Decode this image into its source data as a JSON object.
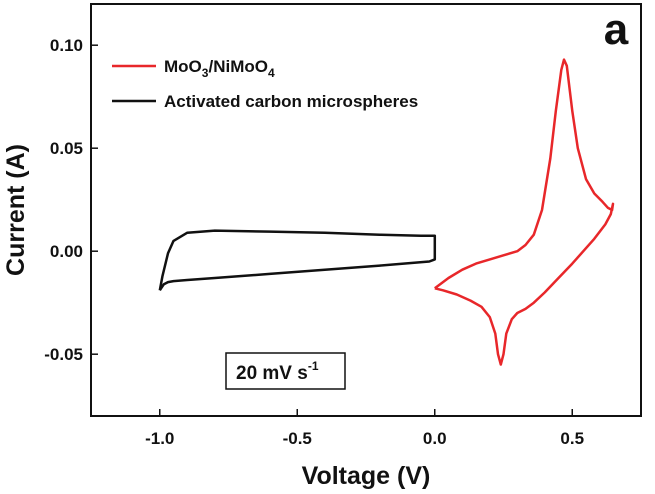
{
  "chart_data": {
    "type": "line",
    "panel_label": "a",
    "xlabel": "Voltage (V)",
    "ylabel": "Current (A)",
    "xlim": [
      -1.25,
      0.75
    ],
    "ylim": [
      -0.08,
      0.12
    ],
    "xticks": [
      -1.0,
      -0.5,
      0.0,
      0.5
    ],
    "yticks": [
      -0.05,
      0.0,
      0.05,
      0.1
    ],
    "xtick_labels": [
      "-1.0",
      "-0.5",
      "0.0",
      "0.5"
    ],
    "ytick_labels": [
      "-0.05",
      "0.00",
      "0.05",
      "0.10"
    ],
    "legend_position": "top-left",
    "annotation": {
      "text_main": "20 mV s",
      "text_sup": "-1"
    },
    "series": [
      {
        "name_main": "MoO",
        "name_parts": [
          {
            "t": "MoO",
            "sub": false
          },
          {
            "t": "3",
            "sub": true
          },
          {
            "t": "/NiMoO",
            "sub": false
          },
          {
            "t": "4",
            "sub": true
          }
        ],
        "color": "#e8272a",
        "x": [
          0.0,
          0.05,
          0.1,
          0.15,
          0.2,
          0.25,
          0.3,
          0.33,
          0.36,
          0.39,
          0.42,
          0.44,
          0.46,
          0.47,
          0.48,
          0.5,
          0.52,
          0.55,
          0.58,
          0.61,
          0.63,
          0.645,
          0.648,
          0.64,
          0.62,
          0.58,
          0.54,
          0.5,
          0.45,
          0.4,
          0.36,
          0.33,
          0.3,
          0.28,
          0.26,
          0.25,
          0.24,
          0.23,
          0.22,
          0.2,
          0.17,
          0.13,
          0.08,
          0.03,
          0.0
        ],
        "y": [
          -0.018,
          -0.013,
          -0.009,
          -0.006,
          -0.004,
          -0.002,
          0.0,
          0.003,
          0.008,
          0.02,
          0.045,
          0.068,
          0.088,
          0.093,
          0.09,
          0.068,
          0.05,
          0.035,
          0.028,
          0.024,
          0.021,
          0.02,
          0.023,
          0.018,
          0.013,
          0.006,
          0.0,
          -0.006,
          -0.013,
          -0.02,
          -0.025,
          -0.028,
          -0.03,
          -0.033,
          -0.04,
          -0.05,
          -0.055,
          -0.05,
          -0.04,
          -0.032,
          -0.027,
          -0.024,
          -0.021,
          -0.019,
          -0.018
        ]
      },
      {
        "name": "Activated carbon microspheres",
        "color": "#111111",
        "x": [
          -1.0,
          -0.99,
          -0.97,
          -0.95,
          -0.9,
          -0.8,
          -0.6,
          -0.4,
          -0.2,
          -0.05,
          0.0,
          0.0,
          -0.02,
          -0.2,
          -0.4,
          -0.6,
          -0.8,
          -0.9,
          -0.95,
          -0.97,
          -0.985,
          -0.995,
          -1.0
        ],
        "y": [
          -0.019,
          -0.012,
          -0.001,
          0.005,
          0.009,
          0.01,
          0.0095,
          0.009,
          0.008,
          0.0075,
          0.0075,
          -0.004,
          -0.005,
          -0.007,
          -0.009,
          -0.011,
          -0.013,
          -0.014,
          -0.0145,
          -0.015,
          -0.016,
          -0.018,
          -0.019
        ]
      }
    ]
  }
}
